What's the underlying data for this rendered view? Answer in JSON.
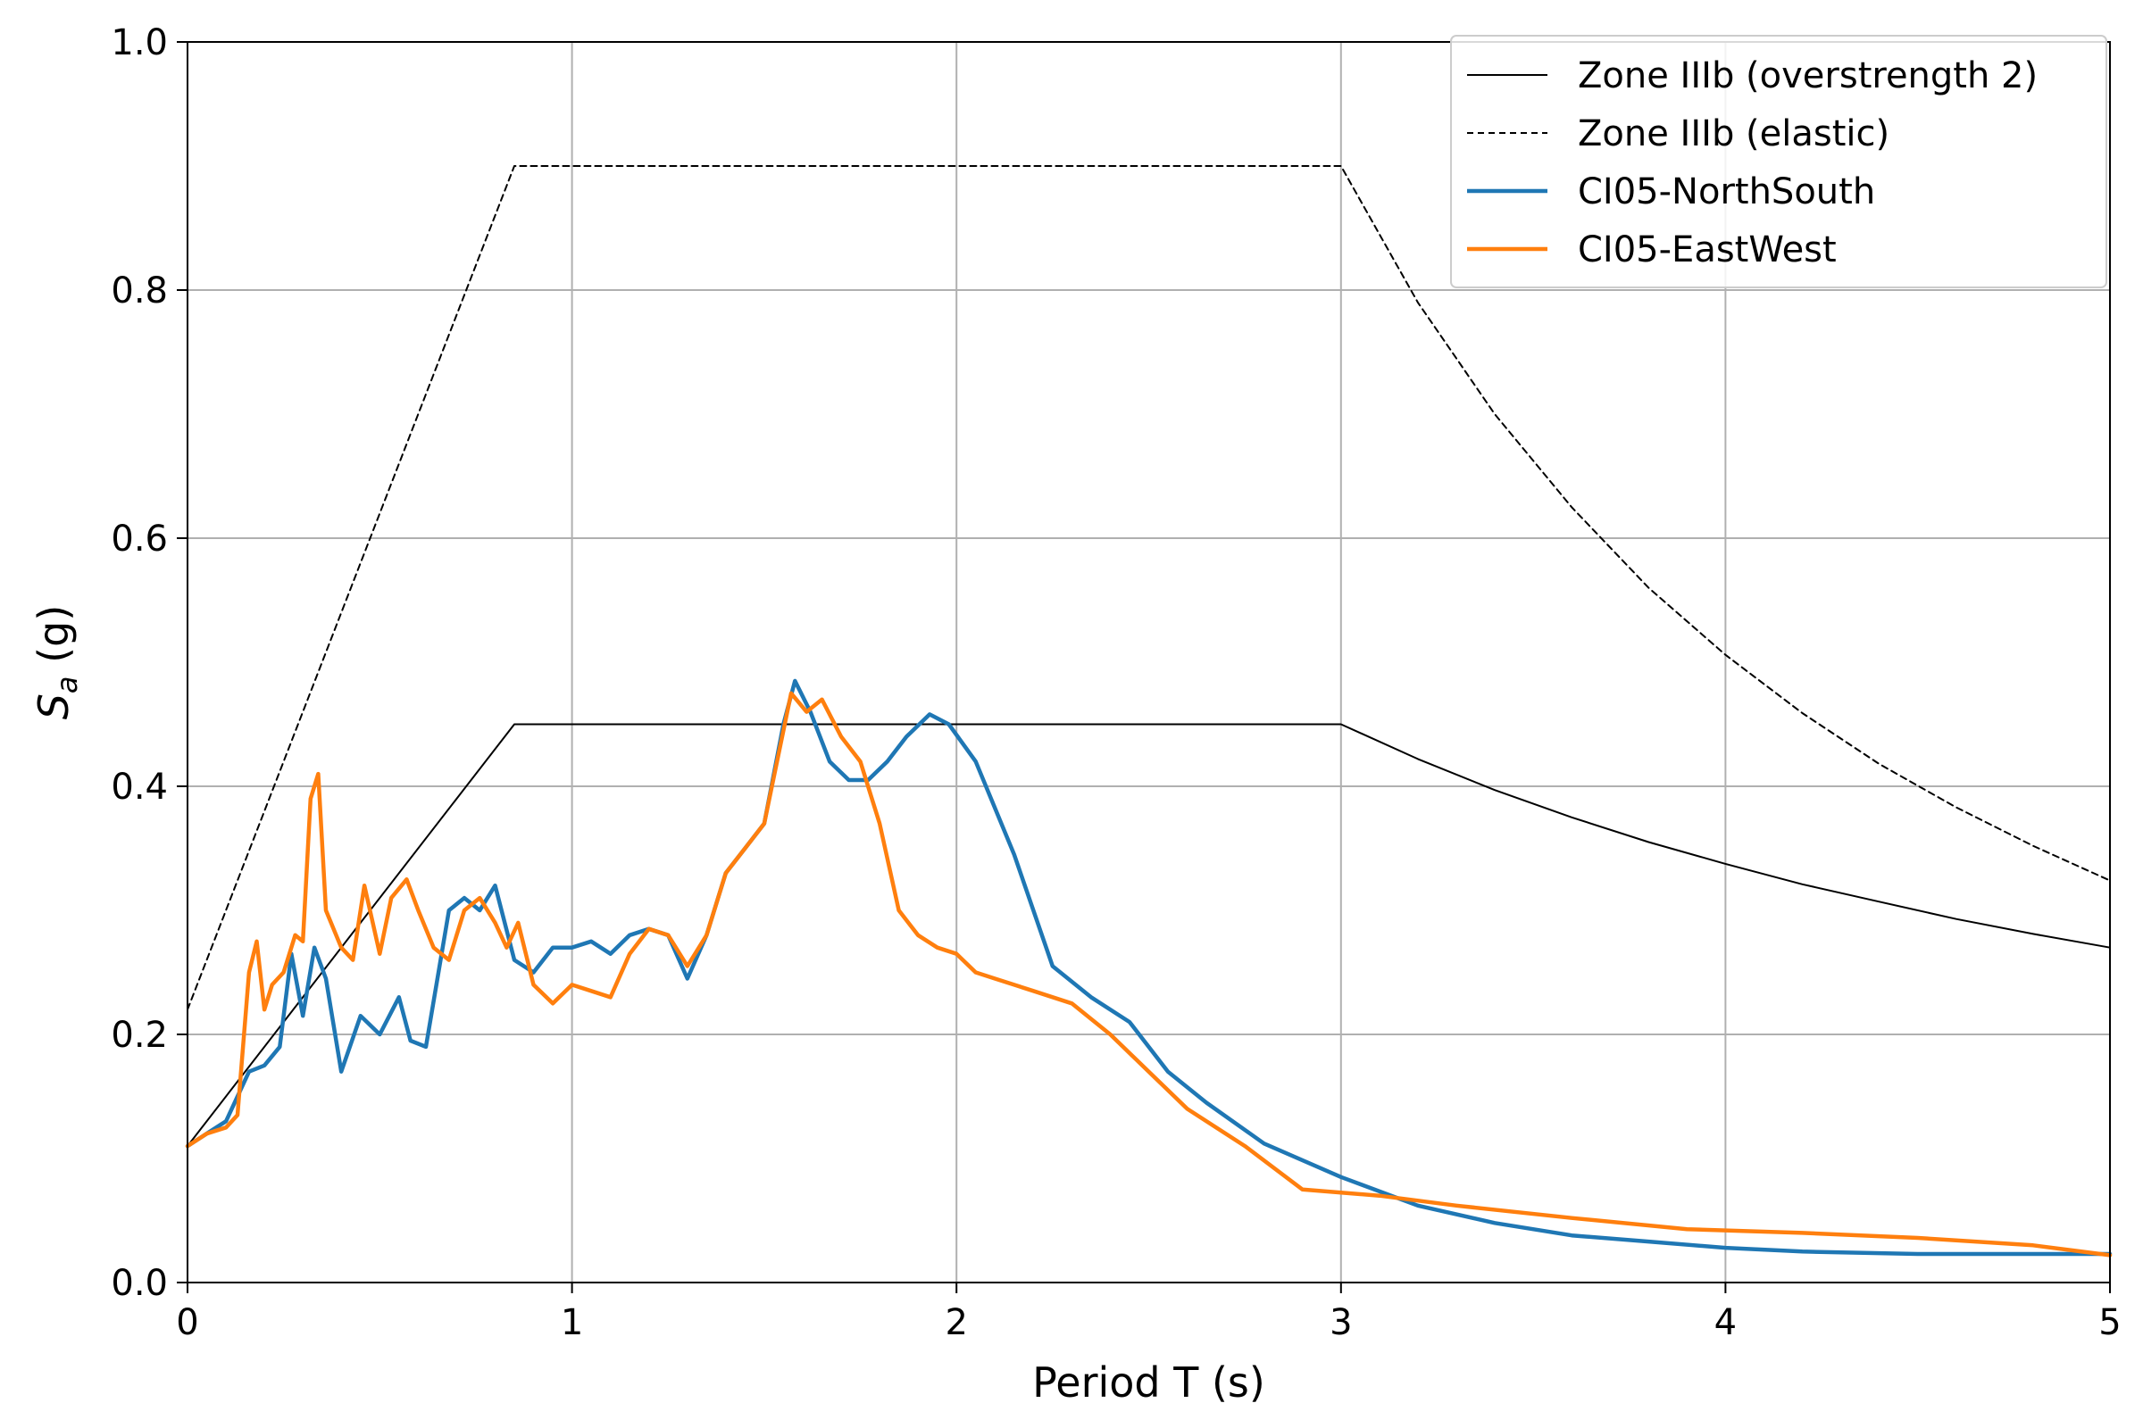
{
  "chart_data": {
    "type": "line",
    "title": "",
    "xlabel": "Period T (s)",
    "ylabel": {
      "main": "S",
      "sub": "a",
      "unit": " (g)"
    },
    "xlim": [
      0,
      5
    ],
    "ylim": [
      0,
      1.0
    ],
    "xticks": [
      0,
      1,
      2,
      3,
      4,
      5
    ],
    "xtick_labels": [
      "0",
      "1",
      "2",
      "3",
      "4",
      "5"
    ],
    "yticks": [
      0,
      0.2,
      0.4,
      0.6,
      0.8,
      1.0
    ],
    "ytick_labels": [
      "0.0",
      "0.2",
      "0.4",
      "0.6",
      "0.8",
      "1.0"
    ],
    "grid": true,
    "legend_position": "top-right",
    "series": [
      {
        "name": "Zone IIIb (overstrength 2)",
        "color": "#000000",
        "style": "solid",
        "x": [
          0,
          0.85,
          3.0,
          3.2,
          3.4,
          3.6,
          3.8,
          4.0,
          4.2,
          4.4,
          4.6,
          4.8,
          5.0
        ],
        "y": [
          0.11,
          0.45,
          0.45,
          0.422,
          0.397,
          0.375,
          0.355,
          0.3375,
          0.321,
          0.307,
          0.293,
          0.281,
          0.27
        ]
      },
      {
        "name": "Zone IIIb (elastic)",
        "color": "#000000",
        "style": "dashed",
        "x": [
          0,
          0.85,
          3.0,
          3.2,
          3.4,
          3.6,
          3.8,
          4.0,
          4.2,
          4.4,
          4.6,
          4.8,
          5.0
        ],
        "y": [
          0.22,
          0.9,
          0.9,
          0.79,
          0.7,
          0.625,
          0.56,
          0.506,
          0.459,
          0.418,
          0.383,
          0.352,
          0.324
        ]
      },
      {
        "name": "CI05-NorthSouth",
        "color": "#1f77b4",
        "style": "solid",
        "x": [
          0,
          0.05,
          0.1,
          0.13,
          0.16,
          0.2,
          0.24,
          0.27,
          0.3,
          0.33,
          0.36,
          0.4,
          0.45,
          0.5,
          0.55,
          0.58,
          0.62,
          0.68,
          0.72,
          0.76,
          0.8,
          0.85,
          0.9,
          0.95,
          1.0,
          1.05,
          1.1,
          1.15,
          1.2,
          1.25,
          1.3,
          1.35,
          1.4,
          1.45,
          1.5,
          1.55,
          1.58,
          1.62,
          1.67,
          1.72,
          1.77,
          1.82,
          1.87,
          1.93,
          1.98,
          2.05,
          2.15,
          2.25,
          2.35,
          2.45,
          2.55,
          2.65,
          2.8,
          3.0,
          3.2,
          3.4,
          3.6,
          3.8,
          4.0,
          4.2,
          4.5,
          4.8,
          5.0
        ],
        "y": [
          0.11,
          0.12,
          0.13,
          0.15,
          0.17,
          0.175,
          0.19,
          0.265,
          0.215,
          0.27,
          0.245,
          0.17,
          0.215,
          0.2,
          0.23,
          0.195,
          0.19,
          0.3,
          0.31,
          0.3,
          0.32,
          0.26,
          0.25,
          0.27,
          0.27,
          0.275,
          0.265,
          0.28,
          0.285,
          0.28,
          0.245,
          0.28,
          0.33,
          0.35,
          0.37,
          0.45,
          0.485,
          0.46,
          0.42,
          0.405,
          0.405,
          0.42,
          0.44,
          0.458,
          0.45,
          0.42,
          0.345,
          0.255,
          0.23,
          0.21,
          0.17,
          0.145,
          0.112,
          0.085,
          0.062,
          0.048,
          0.038,
          0.033,
          0.028,
          0.025,
          0.023,
          0.023,
          0.023
        ]
      },
      {
        "name": "CI05-EastWest",
        "color": "#ff7f0e",
        "style": "solid",
        "x": [
          0,
          0.05,
          0.1,
          0.13,
          0.16,
          0.18,
          0.2,
          0.22,
          0.25,
          0.28,
          0.3,
          0.32,
          0.34,
          0.36,
          0.4,
          0.43,
          0.46,
          0.5,
          0.53,
          0.57,
          0.6,
          0.64,
          0.68,
          0.72,
          0.76,
          0.8,
          0.83,
          0.86,
          0.9,
          0.95,
          1.0,
          1.05,
          1.1,
          1.15,
          1.2,
          1.25,
          1.3,
          1.35,
          1.4,
          1.45,
          1.5,
          1.57,
          1.61,
          1.65,
          1.7,
          1.75,
          1.8,
          1.85,
          1.9,
          1.95,
          2.0,
          2.05,
          2.1,
          2.2,
          2.3,
          2.4,
          2.5,
          2.6,
          2.75,
          2.9,
          3.1,
          3.3,
          3.6,
          3.9,
          4.2,
          4.5,
          4.8,
          5.0
        ],
        "y": [
          0.11,
          0.12,
          0.125,
          0.135,
          0.25,
          0.275,
          0.22,
          0.24,
          0.25,
          0.28,
          0.275,
          0.39,
          0.41,
          0.3,
          0.27,
          0.26,
          0.32,
          0.265,
          0.31,
          0.325,
          0.3,
          0.27,
          0.26,
          0.3,
          0.31,
          0.29,
          0.27,
          0.29,
          0.24,
          0.225,
          0.24,
          0.235,
          0.23,
          0.265,
          0.285,
          0.28,
          0.255,
          0.28,
          0.33,
          0.35,
          0.37,
          0.475,
          0.46,
          0.47,
          0.44,
          0.42,
          0.37,
          0.3,
          0.28,
          0.27,
          0.265,
          0.25,
          0.245,
          0.235,
          0.225,
          0.2,
          0.17,
          0.14,
          0.11,
          0.075,
          0.07,
          0.062,
          0.052,
          0.043,
          0.04,
          0.036,
          0.03,
          0.022
        ]
      }
    ]
  }
}
